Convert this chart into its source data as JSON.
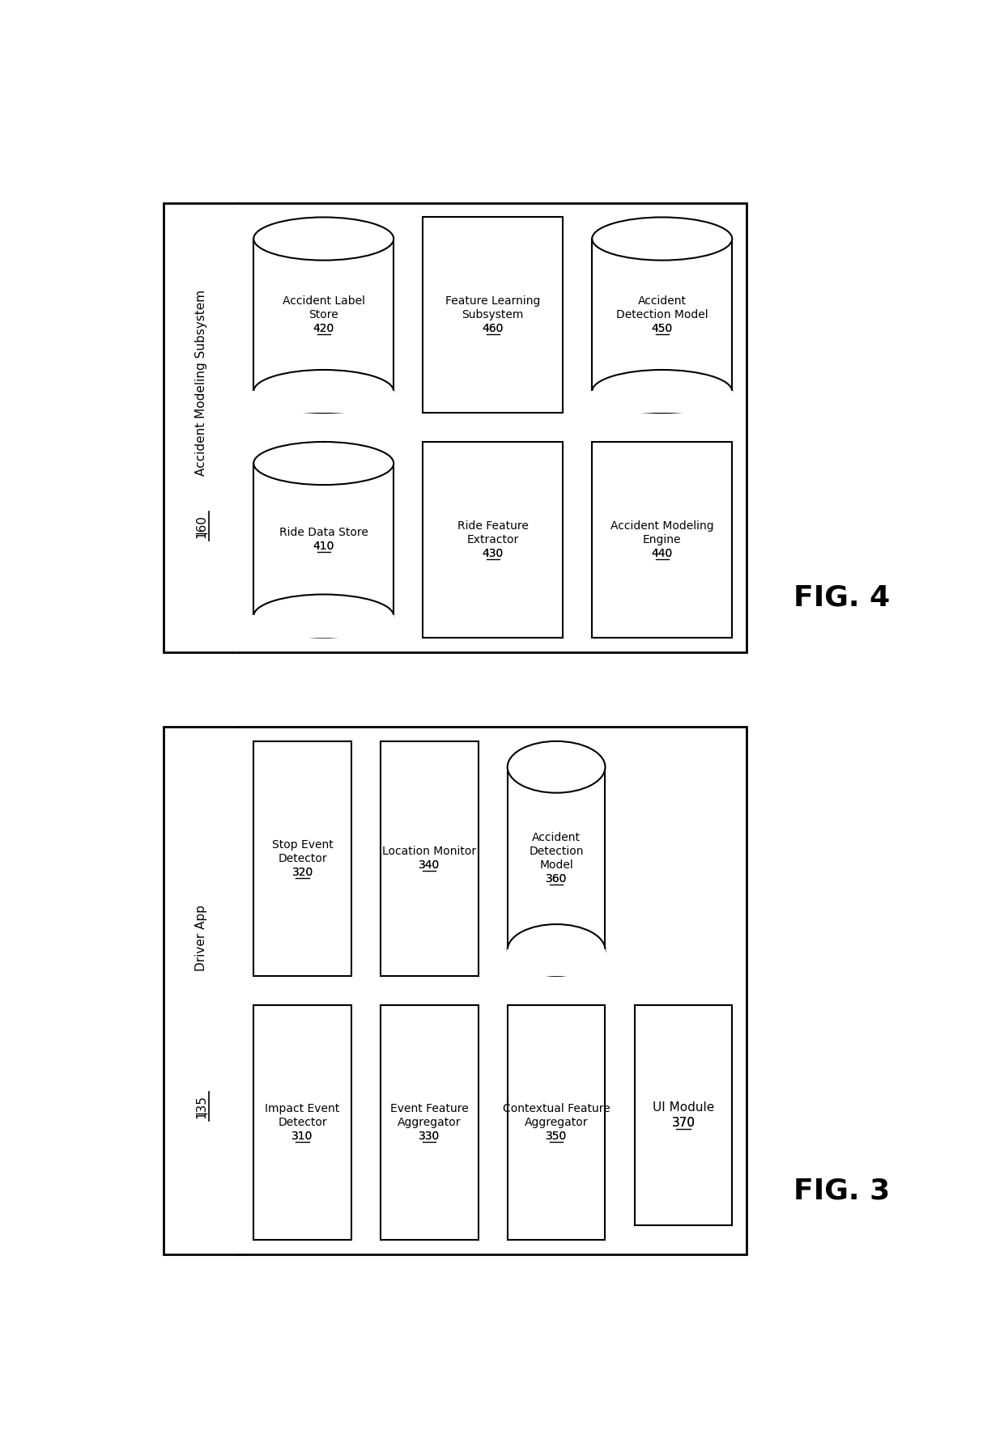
{
  "fig_width": 12.4,
  "fig_height": 17.67,
  "bg_color": "#ffffff",
  "fig4": {
    "title_name": "Accident Modeling Subsystem",
    "title_num": "160",
    "fig_label": "FIG. 4",
    "boxes": [
      {
        "label": "Accident Label\nStore",
        "num": "420",
        "type": "cylinder",
        "col": 0,
        "row": 1
      },
      {
        "label": "Ride Data Store",
        "num": "410",
        "type": "cylinder",
        "col": 0,
        "row": 0
      },
      {
        "label": "Feature Learning\nSubsystem",
        "num": "460",
        "type": "rect",
        "col": 1,
        "row": 1
      },
      {
        "label": "Ride Feature\nExtractor",
        "num": "430",
        "type": "rect",
        "col": 1,
        "row": 0
      },
      {
        "label": "Accident\nDetection Model",
        "num": "450",
        "type": "cylinder",
        "col": 2,
        "row": 1
      },
      {
        "label": "Accident Modeling\nEngine",
        "num": "440",
        "type": "rect",
        "col": 2,
        "row": 0
      }
    ]
  },
  "fig3": {
    "title_name": "Driver App",
    "title_num": "135",
    "fig_label": "FIG. 3",
    "boxes": [
      {
        "label": "Stop Event\nDetector",
        "num": "320",
        "type": "rect",
        "col": 0,
        "row": 1
      },
      {
        "label": "Impact Event\nDetector",
        "num": "310",
        "type": "rect",
        "col": 0,
        "row": 0
      },
      {
        "label": "Location Monitor",
        "num": "340",
        "type": "rect",
        "col": 1,
        "row": 1
      },
      {
        "label": "Event Feature\nAggregator",
        "num": "330",
        "type": "rect",
        "col": 1,
        "row": 0
      },
      {
        "label": "Accident\nDetection\nModel",
        "num": "360",
        "type": "cylinder",
        "col": 2,
        "row": 1
      },
      {
        "label": "Contextual Feature\nAggregator",
        "num": "350",
        "type": "rect",
        "col": 2,
        "row": 0
      }
    ],
    "ui_module": {
      "label": "UI Module",
      "num": "370"
    }
  }
}
